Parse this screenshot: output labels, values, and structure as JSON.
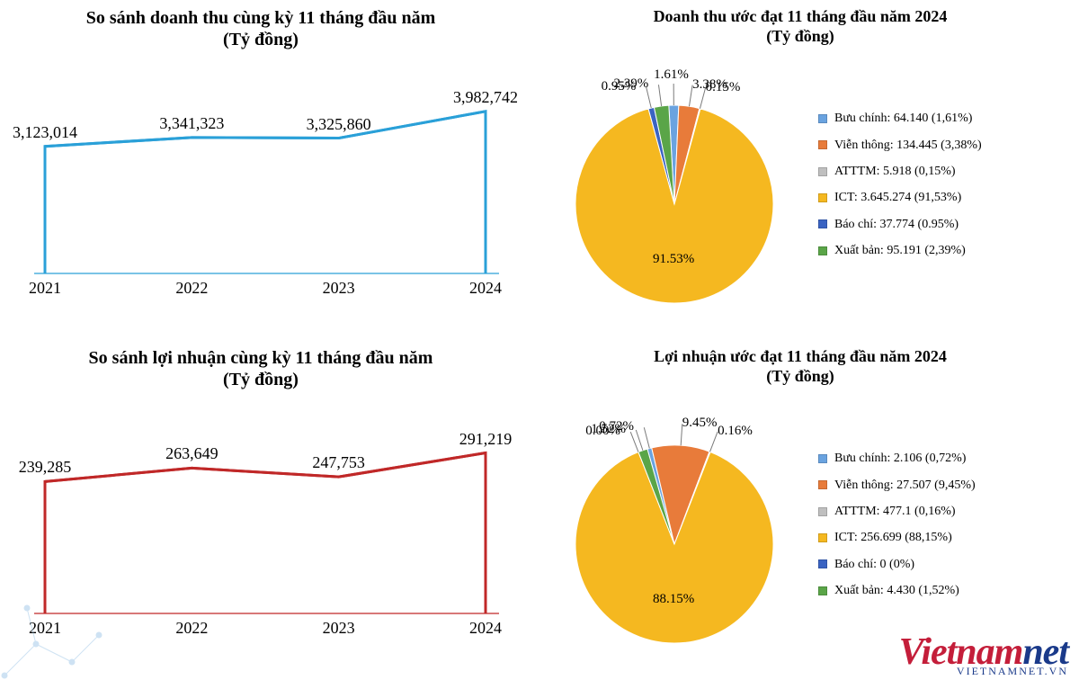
{
  "line_revenue": {
    "type": "line-area",
    "title": "So sánh doanh thu cùng kỳ 11 tháng đầu năm\n(Tỷ đồng)",
    "title_fontsize": 20,
    "categories": [
      "2021",
      "2022",
      "2023",
      "2024"
    ],
    "values": [
      3123014,
      3341323,
      3325860,
      3982742
    ],
    "value_labels": [
      "3,123,014",
      "3,341,323",
      "3,325,860",
      "3,982,742"
    ],
    "y_min": 0,
    "y_max": 4200000,
    "line_color": "#2aa0d8",
    "line_width": 3,
    "fill_color": "#ffffff",
    "axis_color": "#2aa0d8",
    "label_fontsize": 18
  },
  "line_profit": {
    "type": "line-area",
    "title": "So sánh lợi nhuận cùng kỳ 11 tháng đầu năm\n(Tỷ đồng)",
    "title_fontsize": 20,
    "categories": [
      "2021",
      "2022",
      "2023",
      "2024"
    ],
    "values": [
      239285,
      263649,
      247753,
      291219
    ],
    "value_labels": [
      "239,285",
      "263,649",
      "247,753",
      "291,219"
    ],
    "y_min": 0,
    "y_max": 310000,
    "line_color": "#c02828",
    "line_width": 3,
    "fill_color": "#ffffff",
    "axis_color": "#c02828",
    "label_fontsize": 18
  },
  "pie_revenue": {
    "type": "pie",
    "title": "Doanh thu ước đạt 11 tháng đầu năm 2024\n(Tỷ đồng)",
    "title_fontsize": 18,
    "start_angle_deg": -90,
    "slices": [
      {
        "key": "buu_chinh",
        "label": "Bưu chính",
        "value": "64.140",
        "pct": 1.61,
        "pct_label": "1.61%",
        "color": "#6aa3e0"
      },
      {
        "key": "vien_thong",
        "label": "Viễn thông",
        "value": "134.445",
        "pct": 3.38,
        "pct_label": "3.38%",
        "color": "#e87b3a"
      },
      {
        "key": "atttm",
        "label": "ATTTM",
        "value": "5.918",
        "pct": 0.15,
        "pct_label": "0.15%",
        "color": "#bfbfbf"
      },
      {
        "key": "ict",
        "label": "ICT",
        "value": "3.645.274",
        "pct": 91.53,
        "pct_label": "91.53%",
        "color": "#f5b820"
      },
      {
        "key": "bao_chi",
        "label": "Báo chí",
        "value": "37.774",
        "pct": 0.95,
        "pct_label": "0.95%",
        "color": "#3a63c2"
      },
      {
        "key": "xuat_ban",
        "label": "Xuất bản",
        "value": "95.191",
        "pct": 2.39,
        "pct_label": "2.39%",
        "color": "#5aa548"
      }
    ],
    "legend_fmt": [
      "Bưu chính: 64.140 (1,61%)",
      "Viễn thông: 134.445 (3,38%)",
      "ATTTM: 5.918 (0,15%)",
      "ICT: 3.645.274 (91,53%)",
      "Báo chí: 37.774 (0.95%)",
      "Xuất bản: 95.191 (2,39%)"
    ],
    "background_color": "#ffffff"
  },
  "pie_profit": {
    "type": "pie",
    "title": "Lợi nhuận ước đạt 11 tháng đầu năm 2024\n(Tỷ đồng)",
    "title_fontsize": 18,
    "start_angle_deg": -90,
    "slices": [
      {
        "key": "buu_chinh",
        "label": "Bưu chính",
        "value": "2.106",
        "pct": 0.72,
        "pct_label": "0.72%",
        "color": "#6aa3e0"
      },
      {
        "key": "vien_thong",
        "label": "Viễn thông",
        "value": "27.507",
        "pct": 9.45,
        "pct_label": "9.45%",
        "color": "#e87b3a"
      },
      {
        "key": "atttm",
        "label": "ATTTM",
        "value": "477.1",
        "pct": 0.16,
        "pct_label": "0.16%",
        "color": "#bfbfbf"
      },
      {
        "key": "ict",
        "label": "ICT",
        "value": "256.699",
        "pct": 88.15,
        "pct_label": "88.15%",
        "color": "#f5b820"
      },
      {
        "key": "bao_chi",
        "label": "Báo chí",
        "value": "0",
        "pct": 0.0,
        "pct_label": "0.00%",
        "color": "#3a63c2"
      },
      {
        "key": "xuat_ban",
        "label": "Xuất bản",
        "value": "4.430",
        "pct": 1.52,
        "pct_label": "1.52%",
        "color": "#5aa548"
      }
    ],
    "legend_fmt": [
      "Bưu chính: 2.106 (0,72%)",
      "Viễn thông: 27.507 (9,45%)",
      "ATTTM: 477.1 (0,16%)",
      "ICT: 256.699 (88,15%)",
      "Báo chí: 0 (0%)",
      "Xuất bản: 4.430 (1,52%)"
    ],
    "background_color": "#ffffff"
  },
  "watermark": {
    "brand_a": "Vietnam",
    "brand_b": "net",
    "sub": "VIETNAMNET.VN"
  },
  "colors": {
    "page_bg": "#ffffff"
  }
}
